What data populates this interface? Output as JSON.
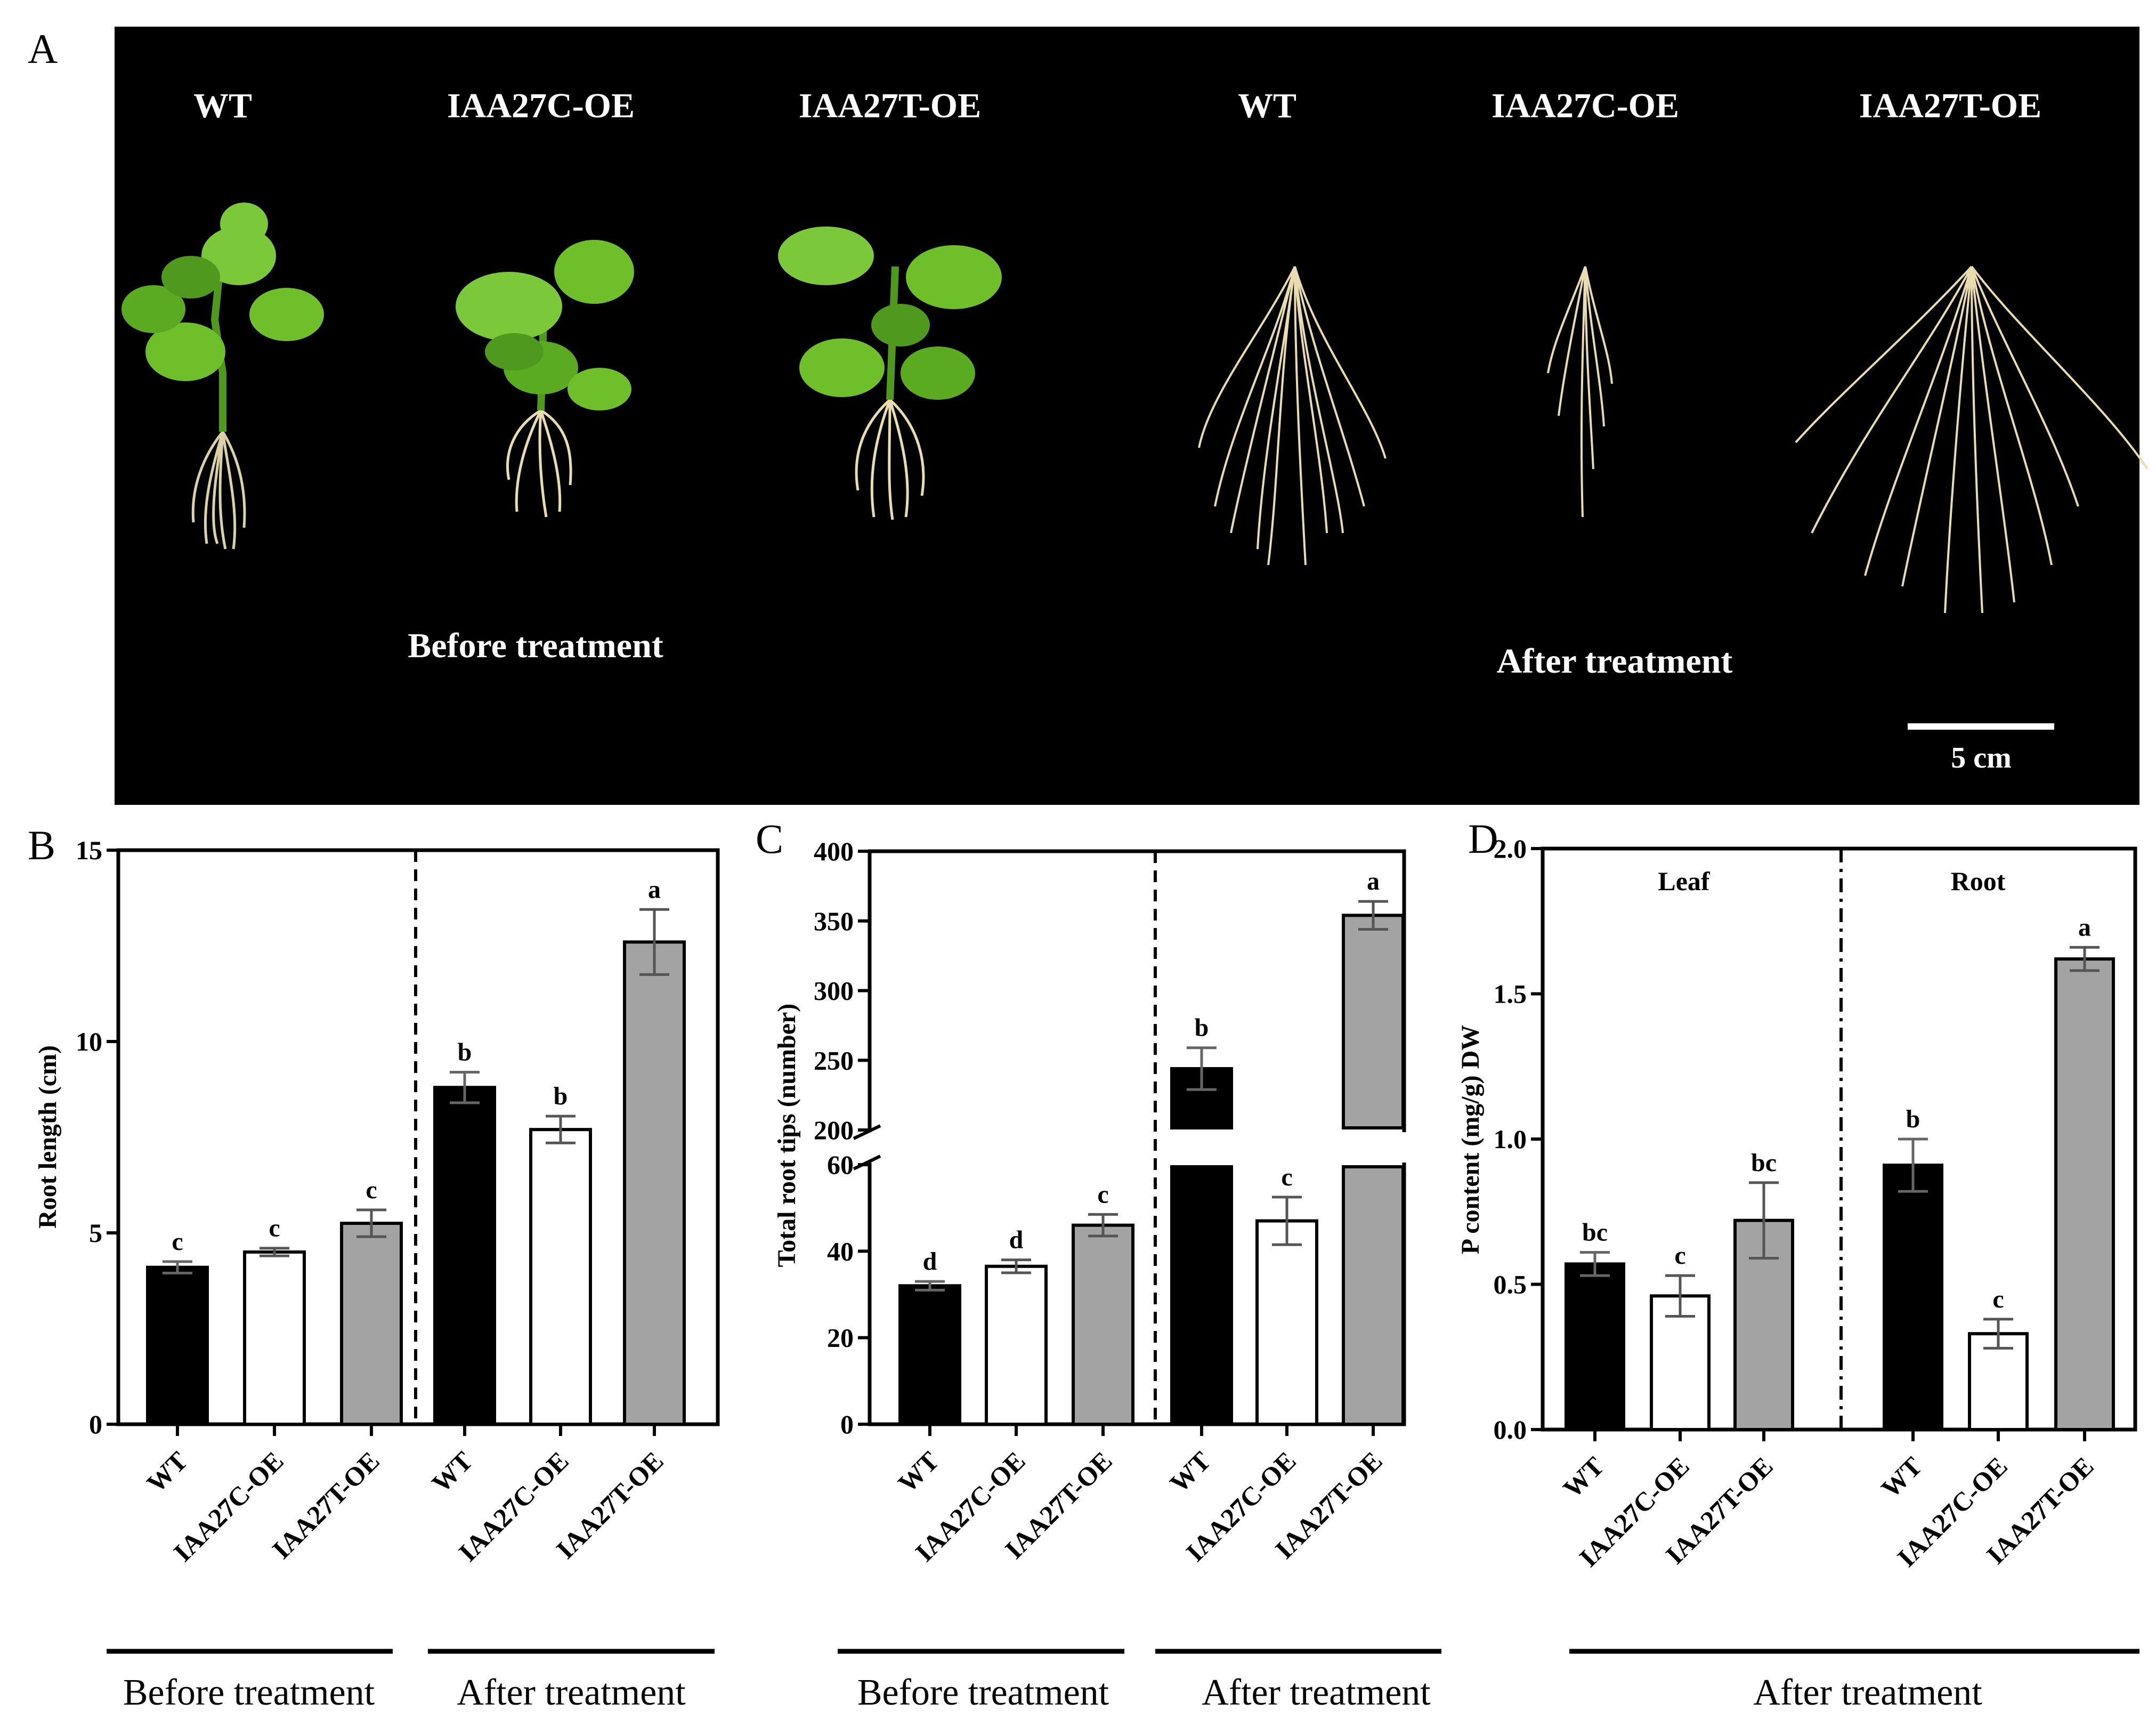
{
  "panel_a": {
    "letter": "A",
    "genotype_labels": [
      "WT",
      "IAA27C-OE",
      "IAA27T-OE",
      "WT",
      "IAA27C-OE",
      "IAA27T-OE"
    ],
    "before_caption": "Before treatment",
    "after_caption": "After treatment",
    "scale_bar_label": "5 cm",
    "colors": {
      "background": "#000000",
      "leaf": "#6fbf2a",
      "leaf_dark": "#3f8f16",
      "root": "#e8dcb0"
    }
  },
  "colors": {
    "wt": "#000000",
    "iaa27c": "#ffffff",
    "iaa27t": "#a3a3a3"
  },
  "chart_data": [
    {
      "panel": "B",
      "type": "bar",
      "ylabel": "Root length (cm)",
      "ylim": [
        0,
        15
      ],
      "yticks": [
        "0",
        "5",
        "10",
        "15"
      ],
      "categories": [
        "WT",
        "IAA27C-OE",
        "IAA27T-OE",
        "WT",
        "IAA27C-OE",
        "IAA27T-OE"
      ],
      "values": [
        4.1,
        4.5,
        5.25,
        8.8,
        7.7,
        12.6
      ],
      "errors": [
        0.15,
        0.1,
        0.35,
        0.4,
        0.35,
        0.85
      ],
      "letters": [
        "c",
        "c",
        "c",
        "b",
        "b",
        "a"
      ],
      "divider": "dashed",
      "groups": [
        "Before treatment",
        "After treatment"
      ]
    },
    {
      "panel": "C",
      "type": "bar",
      "ylabel": "Total root tips (number)",
      "ylim": [
        0,
        400
      ],
      "axis_break": [
        60,
        200
      ],
      "yticks": [
        "0",
        "20",
        "40",
        "60",
        "200",
        "250",
        "300",
        "350",
        "400"
      ],
      "categories": [
        "WT",
        "IAA27C-OE",
        "IAA27T-OE",
        "WT",
        "IAA27C-OE",
        "IAA27T-OE"
      ],
      "values": [
        32,
        36.5,
        46,
        244,
        47,
        354
      ],
      "errors": [
        1,
        1.5,
        2.5,
        15,
        5.5,
        10
      ],
      "letters": [
        "d",
        "d",
        "c",
        "b",
        "c",
        "a"
      ],
      "divider": "dashed",
      "groups": [
        "Before treatment",
        "After treatment"
      ]
    },
    {
      "panel": "D",
      "type": "bar",
      "ylabel": "P content (mg/g) DW",
      "ylim": [
        0,
        2.0
      ],
      "yticks": [
        "0.0",
        "0.5",
        "1.0",
        "1.5",
        "2.0"
      ],
      "categories": [
        "WT",
        "IAA27C-OE",
        "IAA27T-OE",
        "WT",
        "IAA27C-OE",
        "IAA27T-OE"
      ],
      "values": [
        0.57,
        0.46,
        0.72,
        0.91,
        0.33,
        1.62
      ],
      "errors": [
        0.04,
        0.07,
        0.13,
        0.09,
        0.05,
        0.04
      ],
      "letters": [
        "bc",
        "c",
        "bc",
        "b",
        "c",
        "a"
      ],
      "regions": [
        "Leaf",
        "Root"
      ],
      "divider": "dash-dot",
      "groups": [
        "After treatment"
      ]
    }
  ]
}
